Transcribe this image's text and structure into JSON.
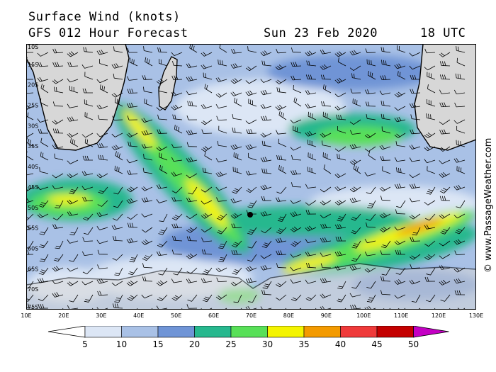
{
  "title": "Surface Wind (knots)",
  "subtitle": "GFS 012 Hour Forecast",
  "date": "Sun 23 Feb 2020",
  "time": "18 UTC",
  "watermark": "© www.PassageWeather.com",
  "map": {
    "lon_range": [
      10,
      130
    ],
    "lat_range": [
      -10,
      -75
    ],
    "lat_labels": [
      "10S",
      "15S",
      "20S",
      "25S",
      "30S",
      "35S",
      "40S",
      "45S",
      "50S",
      "55S",
      "60S",
      "65S",
      "70S",
      "75S"
    ],
    "lon_labels": [
      "10E",
      "20E",
      "30E",
      "40E",
      "50E",
      "60E",
      "70E",
      "80E",
      "90E",
      "100E",
      "110E",
      "120E",
      "130E"
    ]
  },
  "legend": {
    "values": [
      "5",
      "10",
      "15",
      "20",
      "25",
      "30",
      "35",
      "40",
      "45",
      "50"
    ],
    "colors": [
      "#ffffff",
      "#dce6f5",
      "#a9c1e6",
      "#6f94d6",
      "#27b88e",
      "#58e058",
      "#f4f400",
      "#f39a00",
      "#ef3a3a",
      "#c40000",
      "#c400c4"
    ]
  },
  "colors": {
    "land": "#d7d7d7",
    "ocean_base": "#a9c1e6"
  }
}
